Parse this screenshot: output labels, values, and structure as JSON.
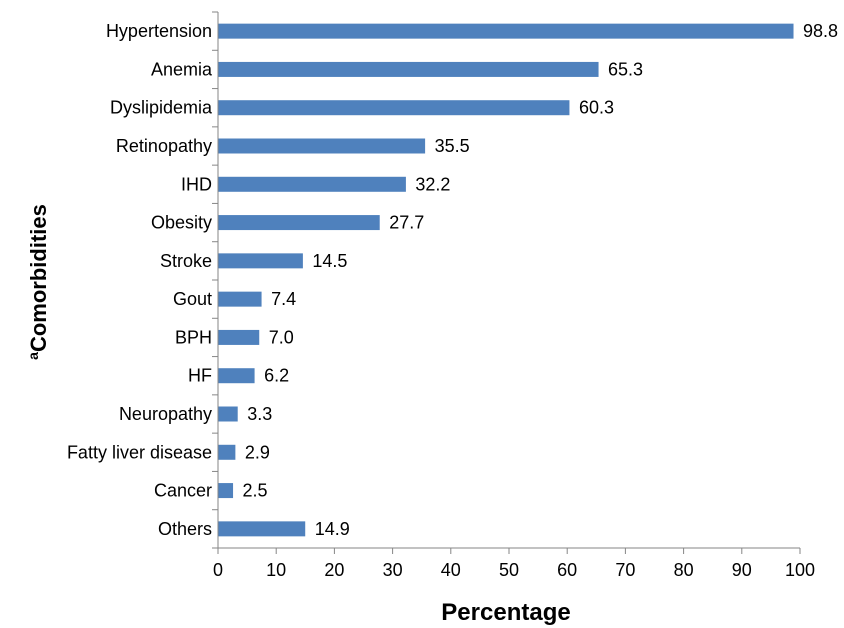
{
  "chart_data": {
    "type": "bar",
    "orientation": "horizontal",
    "categories": [
      "Hypertension",
      "Anemia",
      "Dyslipidemia",
      "Retinopathy",
      "IHD",
      "Obesity",
      "Stroke",
      "Gout",
      "BPH",
      "HF",
      "Neuropathy",
      "Fatty liver disease",
      "Cancer",
      "Others"
    ],
    "values": [
      98.8,
      65.3,
      60.3,
      35.5,
      32.2,
      27.7,
      14.5,
      7.4,
      7.0,
      6.2,
      3.3,
      2.9,
      2.5,
      14.9
    ],
    "value_labels": [
      "98.8",
      "65.3",
      "60.3",
      "35.5",
      "32.2",
      "27.7",
      "14.5",
      "7.4",
      "7.0",
      "6.2",
      "3.3",
      "2.9",
      "2.5",
      "14.9"
    ],
    "xlabel": "Percentage",
    "ylabel_sup": "a",
    "ylabel": "Comorbidities",
    "xlim": [
      0,
      100
    ],
    "xticks": [
      0,
      10,
      20,
      30,
      40,
      50,
      60,
      70,
      80,
      90,
      100
    ],
    "grid": false,
    "legend": "none",
    "bar_color": "#4f81bd"
  }
}
